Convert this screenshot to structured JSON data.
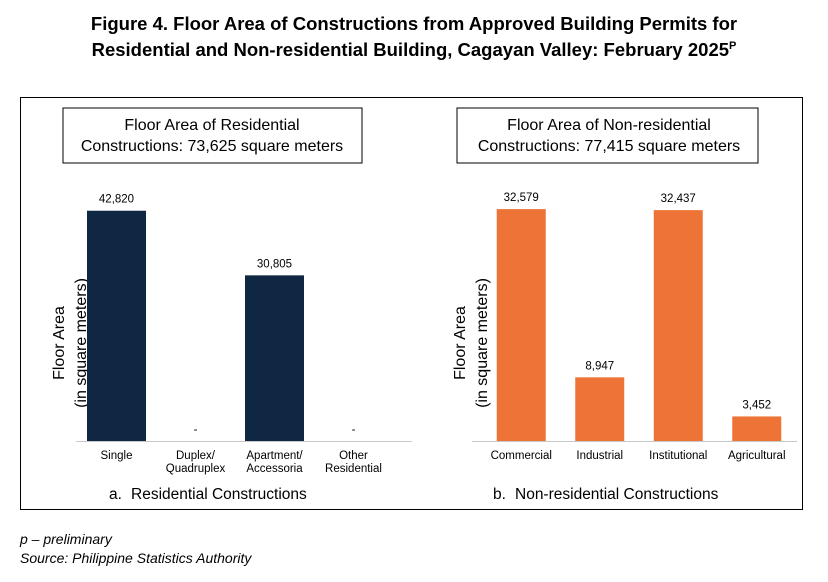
{
  "figure": {
    "title_line1": "Figure 4. Floor Area of Constructions from Approved Building Permits for",
    "title_line2": "Residential and Non-residential Building, Cagayan Valley: February 2025",
    "title_sup": "P"
  },
  "chart_data": [
    {
      "type": "bar",
      "title_lines": [
        "Floor Area of Residential",
        "Constructions: 73,625 square meters"
      ],
      "ylabel_lines": [
        "Floor Area",
        "(in square meters)"
      ],
      "caption_letter": "a.",
      "caption": "Residential Constructions",
      "categories": [
        [
          "Single"
        ],
        [
          "Duplex/",
          "Quadruplex"
        ],
        [
          "Apartment/",
          "Accessoria"
        ],
        [
          "Other",
          "Residential"
        ]
      ],
      "values": [
        42820,
        null,
        30805,
        null
      ],
      "data_labels": [
        "42,820",
        "-",
        "30,805",
        "-"
      ],
      "bar_color": "#0f2742",
      "ylim": [
        0,
        45000
      ],
      "grid": false
    },
    {
      "type": "bar",
      "title_lines": [
        "Floor Area of Non-residential",
        "Constructions: 77,415 square meters"
      ],
      "ylabel_lines": [
        "Floor Area",
        "(in square meters)"
      ],
      "caption_letter": "b.",
      "caption": "Non-residential Constructions",
      "categories": [
        [
          "Commercial"
        ],
        [
          "Industrial"
        ],
        [
          "Institutional"
        ],
        [
          "Agricultural"
        ]
      ],
      "values": [
        32579,
        8947,
        32437,
        3452
      ],
      "data_labels": [
        "32,579",
        "8,947",
        "32,437",
        "3,452"
      ],
      "bar_color": "#ed7436",
      "ylim": [
        0,
        34000
      ],
      "grid": false
    }
  ],
  "footnotes": {
    "preliminary": "p – preliminary",
    "source": "Source: Philippine Statistics Authority"
  }
}
